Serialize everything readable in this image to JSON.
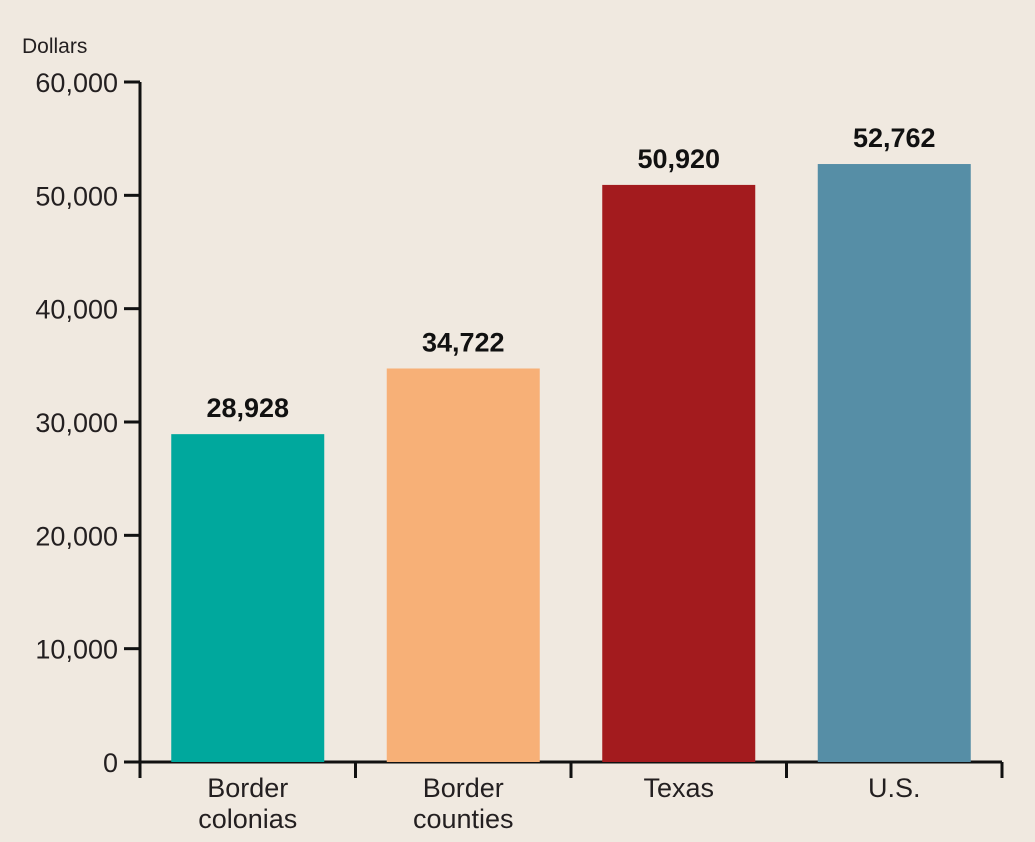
{
  "chart_data": {
    "type": "bar",
    "unit_label": "Dollars",
    "categories": [
      [
        "Border",
        "colonias"
      ],
      [
        "Border",
        "counties"
      ],
      [
        "Texas"
      ],
      [
        "U.S."
      ]
    ],
    "values": [
      28928,
      34722,
      50920,
      52762
    ],
    "value_labels": [
      "28,928",
      "34,722",
      "50,920",
      "52,762"
    ],
    "colors": [
      "#00a89d",
      "#f7b077",
      "#a31b1e",
      "#568ea6"
    ],
    "ylim": [
      0,
      60000
    ],
    "yticks": [
      0,
      10000,
      20000,
      30000,
      40000,
      50000,
      60000
    ],
    "ytick_labels": [
      "0",
      "10,000",
      "20,000",
      "30,000",
      "40,000",
      "50,000",
      "60,000"
    ],
    "grid": false,
    "legend": "none"
  }
}
